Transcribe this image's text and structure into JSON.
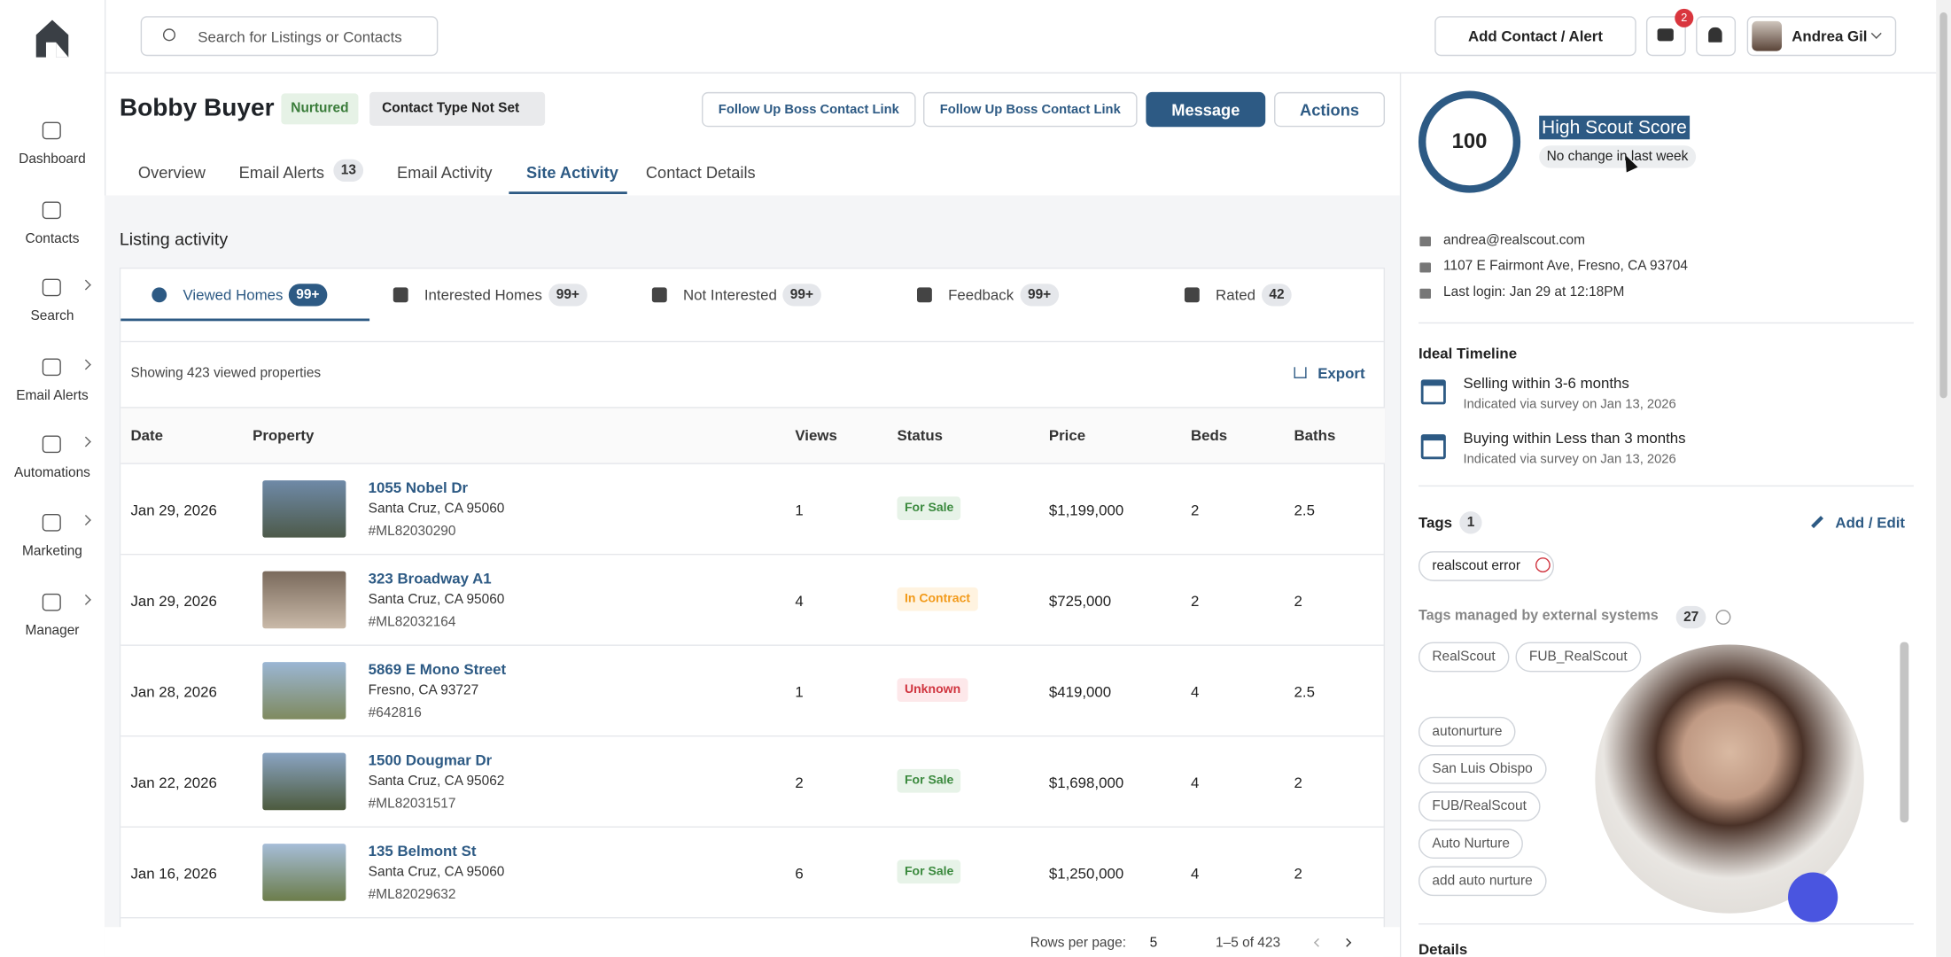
{
  "sidebar": [
    "Dashboard",
    "Contacts",
    "Search",
    "Email Alerts",
    "Automations",
    "Marketing",
    "Manager"
  ],
  "search_placeholder": "Search for Listings or Contacts",
  "topbar": {
    "add_button": "Add Contact / Alert",
    "notification_count": "2",
    "user": "Andrea Gil"
  },
  "contact": {
    "name": "Bobby Buyer",
    "status": "Nurtured",
    "contact_type": "Contact Type Not Set",
    "buttons": [
      "Follow Up Boss Contact Link",
      "Follow Up Boss Contact Link",
      "Message",
      "Actions"
    ]
  },
  "tabs": [
    {
      "label": "Overview"
    },
    {
      "label": "Email Alerts",
      "count": "13"
    },
    {
      "label": "Email Activity"
    },
    {
      "label": "Site Activity"
    },
    {
      "label": "Contact Details"
    }
  ],
  "listing_activity": {
    "title": "Listing activity",
    "subtabs": [
      {
        "label": "Viewed Homes",
        "count": "99+"
      },
      {
        "label": "Interested Homes",
        "count": "99+"
      },
      {
        "label": "Not Interested",
        "count": "99+"
      },
      {
        "label": "Feedback",
        "count": "99+"
      },
      {
        "label": "Rated",
        "count": "42"
      }
    ],
    "summary": "Showing 423 viewed properties",
    "export": "Export",
    "columns": [
      "Date",
      "Property",
      "Views",
      "Status",
      "Price",
      "Beds",
      "Baths"
    ],
    "rows": [
      {
        "date": "Jan 29, 2026",
        "address": "1055 Nobel Dr",
        "city": "Santa Cruz, CA 95060",
        "mls": "#ML82030290",
        "views": "1",
        "status": "For Sale",
        "price": "$1,199,000",
        "beds": "2",
        "baths": "2.5"
      },
      {
        "date": "Jan 29, 2026",
        "address": "323 Broadway A1",
        "city": "Santa Cruz, CA 95060",
        "mls": "#ML82032164",
        "views": "4",
        "status": "In Contract",
        "price": "$725,000",
        "beds": "2",
        "baths": "2"
      },
      {
        "date": "Jan 28, 2026",
        "address": "5869 E Mono Street",
        "city": "Fresno, CA 93727",
        "mls": "#642816",
        "views": "1",
        "status": "Unknown",
        "price": "$419,000",
        "beds": "4",
        "baths": "2.5"
      },
      {
        "date": "Jan 22, 2026",
        "address": "1500 Dougmar Dr",
        "city": "Santa Cruz, CA 95062",
        "mls": "#ML82031517",
        "views": "2",
        "status": "For Sale",
        "price": "$1,698,000",
        "beds": "4",
        "baths": "2"
      },
      {
        "date": "Jan 16, 2026",
        "address": "135 Belmont St",
        "city": "Santa Cruz, CA 95060",
        "mls": "#ML82029632",
        "views": "6",
        "status": "For Sale",
        "price": "$1,250,000",
        "beds": "4",
        "baths": "2"
      }
    ],
    "pagination": {
      "rows_per_page_label": "Rows per page:",
      "rows_per_page": "5",
      "range": "1–5 of 423"
    }
  },
  "score": {
    "value": "100",
    "label": "High Scout Score",
    "change": "No change in last week"
  },
  "contact_info": [
    "andrea@realscout.com",
    "1107 E Fairmont Ave, Fresno, CA 93704",
    "Last login: Jan 29 at 12:18PM"
  ],
  "ideal_timeline": {
    "title": "Ideal Timeline",
    "items": [
      {
        "title": "Selling within 3-6 months",
        "note": "Indicated via survey on Jan 13, 2026"
      },
      {
        "title": "Buying within Less than 3 months",
        "note": "Indicated via survey on Jan 13, 2026"
      }
    ]
  },
  "tags": {
    "title": "Tags",
    "count": "1",
    "edit": "Add / Edit",
    "items": [
      "realscout error"
    ]
  },
  "external_tags": {
    "title": "Tags managed by external systems",
    "count": "27",
    "items": [
      "RealScout",
      "FUB_RealScout",
      "autonurture",
      "San Luis Obispo",
      "FUB/RealScout",
      "Auto Nurture",
      "add auto nurture"
    ]
  },
  "details_title": "Details"
}
